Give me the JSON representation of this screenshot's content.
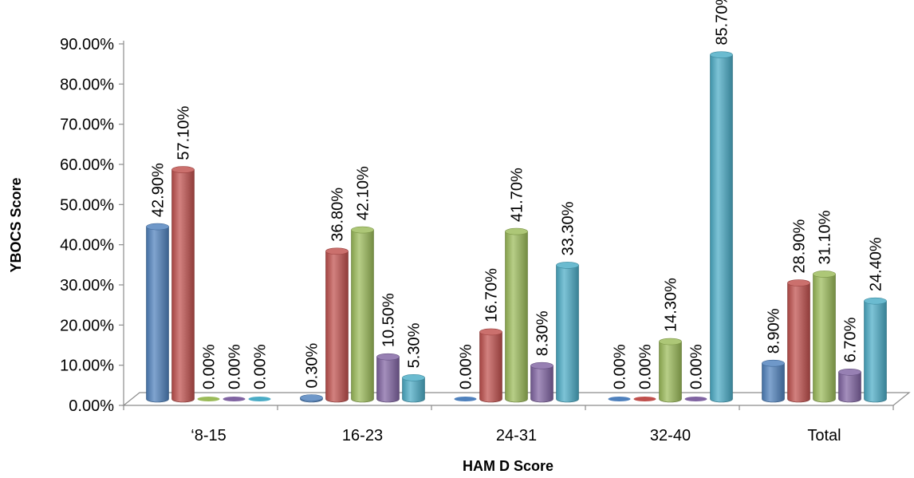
{
  "chart_data": {
    "type": "bar",
    "xlabel": "HAM D Score",
    "ylabel": "YBOCS Score",
    "categories": [
      "‘8-15",
      "16-23",
      "24-31",
      "32-40",
      "Total"
    ],
    "ylim": [
      0,
      90
    ],
    "yticks": [
      "0.00%",
      "10.00%",
      "20.00%",
      "30.00%",
      "40.00%",
      "50.00%",
      "60.00%",
      "70.00%",
      "80.00%",
      "90.00%"
    ],
    "grid": false,
    "legend": "none",
    "series": [
      {
        "color": "#4f81bd",
        "values": [
          42.9,
          0.3,
          0.0,
          0.0,
          8.9
        ],
        "labels": [
          "42.90%",
          "0.30%",
          "0.00%",
          "0.00%",
          "8.90%"
        ]
      },
      {
        "color": "#c0504d",
        "values": [
          57.1,
          36.8,
          16.7,
          0.0,
          28.9
        ],
        "labels": [
          "57.10%",
          "36.80%",
          "16.70%",
          "0.00%",
          "28.90%"
        ]
      },
      {
        "color": "#9bbb59",
        "values": [
          0.0,
          42.1,
          41.7,
          14.3,
          31.1
        ],
        "labels": [
          "0.00%",
          "42.10%",
          "41.70%",
          "14.30%",
          "31.10%"
        ]
      },
      {
        "color": "#8064a2",
        "values": [
          0.0,
          10.5,
          8.3,
          0.0,
          6.7
        ],
        "labels": [
          "0.00%",
          "10.50%",
          "8.30%",
          "0.00%",
          "6.70%"
        ]
      },
      {
        "color": "#4bacc6",
        "values": [
          0.0,
          5.3,
          33.3,
          85.7,
          24.4
        ],
        "labels": [
          "0.00%",
          "5.30%",
          "33.30%",
          "85.70%",
          "24.40%"
        ]
      }
    ]
  }
}
